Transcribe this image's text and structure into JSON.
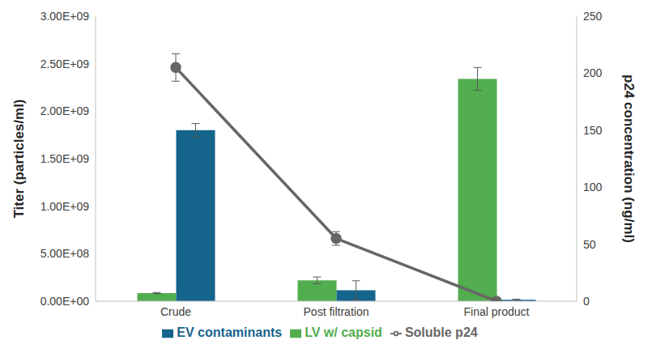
{
  "chart_data": {
    "type": "bar",
    "categories": [
      "Crude",
      "Post filtration",
      "Final product"
    ],
    "series": [
      {
        "name": "LV w/ capsid",
        "type": "bar",
        "color": "#52ad4f",
        "axis": "y",
        "values": [
          85000000,
          220000000,
          2340000000
        ],
        "errors": [
          6000000,
          35000000,
          120000000
        ]
      },
      {
        "name": "EV contaminants",
        "type": "bar",
        "color": "#15648c",
        "axis": "y",
        "values": [
          1800000000,
          115000000,
          15000000
        ],
        "errors": [
          70000000,
          100000000,
          5000000
        ]
      },
      {
        "name": "Soluble p24",
        "type": "line",
        "color": "#666666",
        "marker": "circle",
        "axis": "y2",
        "values": [
          205,
          55,
          0
        ],
        "errors": [
          12,
          6,
          0
        ]
      }
    ],
    "y_label": "Titer (particles/ml)",
    "y2_label": "p24 concentration (ng/ml)",
    "ylim": [
      0,
      3000000000
    ],
    "yticks": [
      {
        "value": 0,
        "label": "0.00E+00"
      },
      {
        "value": 500000000,
        "label": "5.00E+08"
      },
      {
        "value": 1000000000,
        "label": "1.00E+09"
      },
      {
        "value": 1500000000,
        "label": "1.50E+09"
      },
      {
        "value": 2000000000,
        "label": "2.00E+09"
      },
      {
        "value": 2500000000,
        "label": "2.50E+09"
      },
      {
        "value": 3000000000,
        "label": "3.00E+09"
      }
    ],
    "y2lim": [
      0,
      250
    ],
    "y2ticks": [
      0,
      50,
      100,
      150,
      200,
      250
    ],
    "grid": false,
    "legend": "bottom"
  }
}
